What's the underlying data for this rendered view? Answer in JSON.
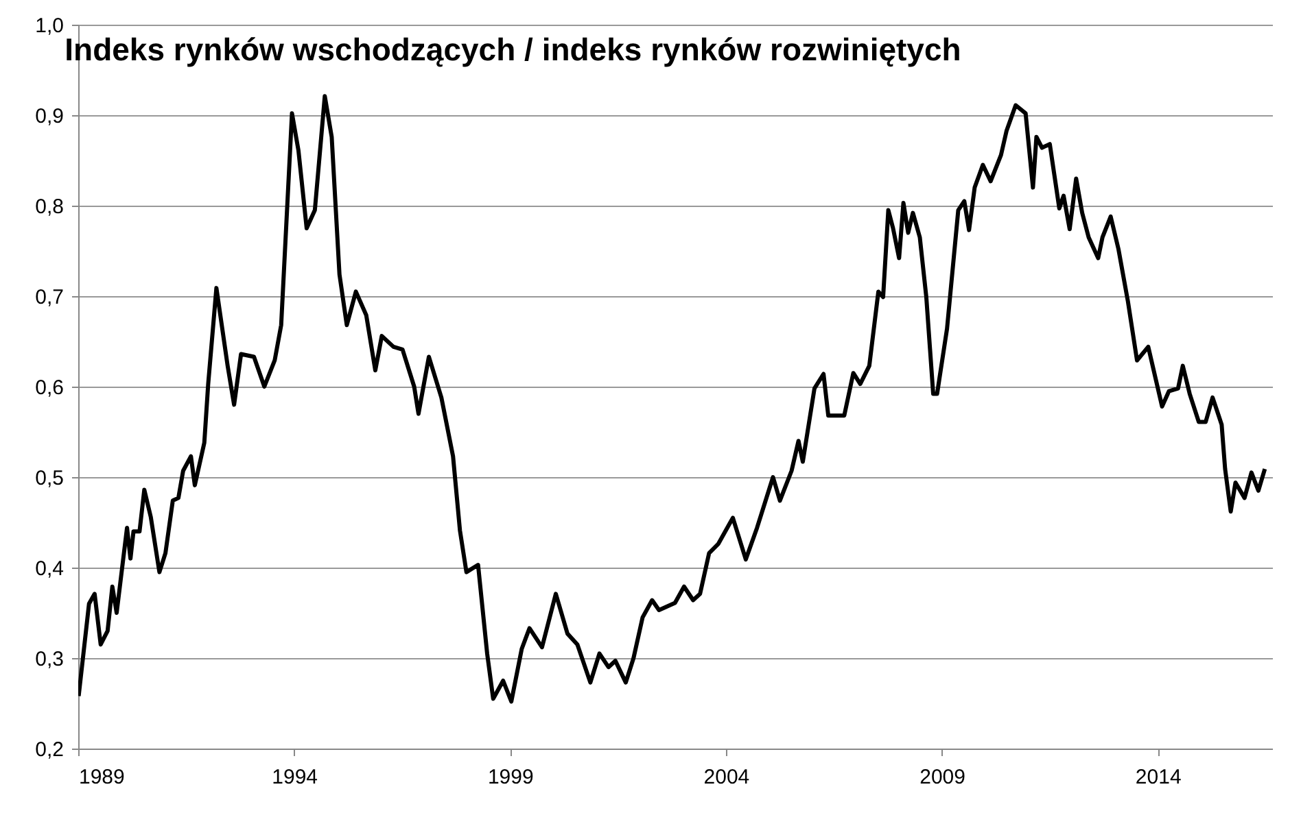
{
  "chart_data": {
    "type": "line",
    "title": "Indeks rynków wschodzących / indeks rynków rozwiniętych",
    "color": "#000000",
    "x": [
      1989.01,
      1989.25,
      1989.38,
      1989.52,
      1989.68,
      1989.79,
      1989.89,
      1990.13,
      1990.21,
      1990.28,
      1990.42,
      1990.53,
      1990.68,
      1990.88,
      1991.02,
      1991.19,
      1991.32,
      1991.43,
      1991.61,
      1991.7,
      1991.92,
      1992.01,
      1992.2,
      1992.46,
      1992.61,
      1992.77,
      1993.07,
      1993.31,
      1993.55,
      1993.7,
      1993.95,
      1994.1,
      1994.29,
      1994.48,
      1994.71,
      1994.87,
      1995.05,
      1995.22,
      1995.43,
      1995.67,
      1995.88,
      1996.03,
      1996.3,
      1996.51,
      1996.78,
      1996.88,
      1997.12,
      1997.41,
      1997.68,
      1997.84,
      1997.99,
      1998.26,
      1998.47,
      1998.61,
      1998.84,
      1999.03,
      1999.27,
      1999.45,
      1999.74,
      2000.06,
      2000.33,
      2000.56,
      2000.86,
      2001.07,
      2001.28,
      2001.44,
      2001.68,
      2001.86,
      2002.07,
      2002.29,
      2002.45,
      2002.82,
      2003.03,
      2003.24,
      2003.4,
      2003.61,
      2003.82,
      2004.16,
      2004.46,
      2004.72,
      2005.09,
      2005.25,
      2005.52,
      2005.68,
      2005.78,
      2006.05,
      2006.26,
      2006.37,
      2006.74,
      2006.95,
      2007.11,
      2007.32,
      2007.53,
      2007.64,
      2007.76,
      2007.87,
      2008.01,
      2008.11,
      2008.22,
      2008.33,
      2008.49,
      2008.64,
      2008.8,
      2008.89,
      2009.12,
      2009.38,
      2009.52,
      2009.63,
      2009.76,
      2009.95,
      2010.13,
      2010.37,
      2010.5,
      2010.71,
      2010.94,
      2011.11,
      2011.19,
      2011.32,
      2011.5,
      2011.72,
      2011.82,
      2011.96,
      2012.11,
      2012.25,
      2012.4,
      2012.62,
      2012.72,
      2012.91,
      2013.09,
      2013.31,
      2013.52,
      2013.78,
      2014.1,
      2014.26,
      2014.47,
      2014.58,
      2014.74,
      2014.95,
      2015.11,
      2015.27,
      2015.48,
      2015.56,
      2015.69,
      2015.8,
      2016.01,
      2016.17,
      2016.33,
      2016.48
    ],
    "values": [
      0.258,
      0.36,
      0.371,
      0.315,
      0.33,
      0.379,
      0.35,
      0.444,
      0.41,
      0.44,
      0.44,
      0.486,
      0.456,
      0.395,
      0.416,
      0.474,
      0.477,
      0.507,
      0.523,
      0.491,
      0.538,
      0.603,
      0.709,
      0.623,
      0.58,
      0.636,
      0.633,
      0.6,
      0.629,
      0.668,
      0.902,
      0.861,
      0.775,
      0.795,
      0.921,
      0.876,
      0.724,
      0.668,
      0.705,
      0.679,
      0.618,
      0.656,
      0.644,
      0.641,
      0.6,
      0.57,
      0.633,
      0.588,
      0.523,
      0.441,
      0.395,
      0.403,
      0.305,
      0.255,
      0.275,
      0.252,
      0.31,
      0.333,
      0.312,
      0.371,
      0.327,
      0.315,
      0.273,
      0.305,
      0.29,
      0.297,
      0.273,
      0.3,
      0.345,
      0.364,
      0.353,
      0.361,
      0.379,
      0.364,
      0.371,
      0.416,
      0.426,
      0.455,
      0.409,
      0.444,
      0.5,
      0.474,
      0.507,
      0.54,
      0.517,
      0.598,
      0.614,
      0.568,
      0.568,
      0.615,
      0.603,
      0.623,
      0.705,
      0.699,
      0.795,
      0.775,
      0.742,
      0.803,
      0.77,
      0.792,
      0.765,
      0.699,
      0.592,
      0.592,
      0.664,
      0.795,
      0.805,
      0.773,
      0.82,
      0.845,
      0.827,
      0.856,
      0.883,
      0.911,
      0.902,
      0.82,
      0.876,
      0.864,
      0.868,
      0.797,
      0.811,
      0.774,
      0.83,
      0.792,
      0.765,
      0.742,
      0.765,
      0.788,
      0.752,
      0.694,
      0.629,
      0.644,
      0.578,
      0.595,
      0.598,
      0.623,
      0.592,
      0.561,
      0.561,
      0.588,
      0.558,
      0.509,
      0.462,
      0.494,
      0.477,
      0.505,
      0.485,
      0.509
    ],
    "xlim": [
      1989,
      2016.65
    ],
    "xticks": [
      1989,
      1994,
      1999,
      2004,
      2009,
      2014
    ],
    "ylim": [
      0.2,
      1.0
    ],
    "yticks": [
      {
        "value": 0.2,
        "label": "0,2"
      },
      {
        "value": 0.3,
        "label": "0,3"
      },
      {
        "value": 0.4,
        "label": "0,4"
      },
      {
        "value": 0.5,
        "label": "0,5"
      },
      {
        "value": 0.6,
        "label": "0,6"
      },
      {
        "value": 0.7,
        "label": "0,7"
      },
      {
        "value": 0.8,
        "label": "0,8"
      },
      {
        "value": 0.9,
        "label": "0,9"
      },
      {
        "value": 1.0,
        "label": "1,0"
      }
    ],
    "grid": "y"
  }
}
